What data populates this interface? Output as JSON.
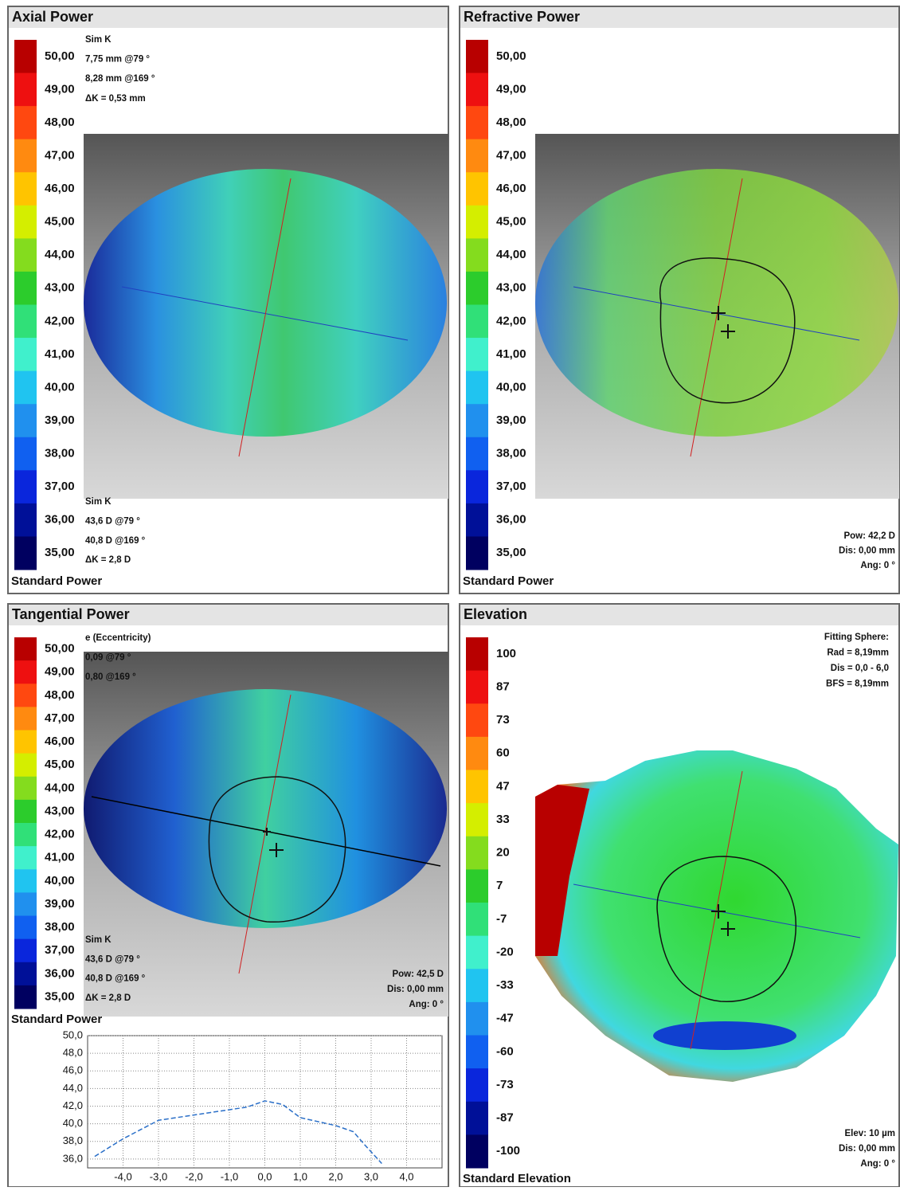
{
  "scale_colors": [
    "#b80000",
    "#ee1010",
    "#ff4810",
    "#ff8a10",
    "#ffc400",
    "#d4ee00",
    "#84dc1e",
    "#2ccc2c",
    "#30e078",
    "#40f0cc",
    "#20c4f0",
    "#2090ee",
    "#1060f0",
    "#0a26dc",
    "#001098",
    "#000060"
  ],
  "panels": [
    {
      "title": "Axial Power",
      "scale_labels": [
        "50,00",
        "49,00",
        "48,00",
        "47,00",
        "46,00",
        "45,00",
        "44,00",
        "43,00",
        "42,00",
        "41,00",
        "40,00",
        "39,00",
        "38,00",
        "37,00",
        "36,00",
        "35,00"
      ],
      "text_blocks": [
        [
          "Sim K",
          "7,75 mm @79 °",
          "8,28 mm @169 °",
          "ΔK = 0,53 mm"
        ],
        [
          "Sim K",
          "43,6 D @79 °",
          "40,8 D @169 °",
          "ΔK = 2,8 D"
        ]
      ],
      "footer": "Standard Power"
    },
    {
      "title": "Refractive Power",
      "scale_labels": [
        "50,00",
        "49,00",
        "48,00",
        "47,00",
        "46,00",
        "45,00",
        "44,00",
        "43,00",
        "42,00",
        "41,00",
        "40,00",
        "39,00",
        "38,00",
        "37,00",
        "36,00",
        "35,00"
      ],
      "text_blocks": [
        [
          "Pow: 42,2 D",
          "Dis: 0,00 mm",
          "Ang: 0 °"
        ]
      ],
      "footer": "Standard Power"
    },
    {
      "title": "Tangential Power",
      "scale_labels": [
        "50,00",
        "49,00",
        "48,00",
        "47,00",
        "46,00",
        "45,00",
        "44,00",
        "43,00",
        "42,00",
        "41,00",
        "40,00",
        "39,00",
        "38,00",
        "37,00",
        "36,00",
        "35,00"
      ],
      "text_blocks": [
        [
          "e (Eccentricity)",
          "0,09 @79 °",
          "0,80 @169 °"
        ],
        [
          "Sim K",
          "43,6 D @79 °",
          "40,8 D @169 °",
          "ΔK = 2,8 D"
        ],
        [
          "Pow: 42,5 D",
          "Dis: 0,00 mm",
          "Ang: 0 °"
        ]
      ],
      "footer": "Standard Power"
    },
    {
      "title": "Elevation",
      "scale_labels": [
        "100",
        "87",
        "73",
        "60",
        "47",
        "33",
        "20",
        "7",
        "-7",
        "-20",
        "-33",
        "-47",
        "-60",
        "-73",
        "-87",
        "-100"
      ],
      "text_blocks": [
        [
          "Fitting Sphere:",
          "Rad = 8,19mm",
          "Dis = 0,0 - 6,0",
          "BFS = 8,19mm"
        ],
        [
          "Elev: 10 µm",
          "Dis: 0,00 mm",
          "Ang: 0 °"
        ]
      ],
      "footer": "Standard Elevation"
    }
  ],
  "profile": {
    "type": "line",
    "xlim": [
      -5,
      5
    ],
    "ylim": [
      35,
      50
    ],
    "xticks": [
      {
        "value": -4,
        "label": "-4,0"
      },
      {
        "value": -3,
        "label": "-3,0"
      },
      {
        "value": -2,
        "label": "-2,0"
      },
      {
        "value": -1,
        "label": "-1,0"
      },
      {
        "value": 0,
        "label": "0,0"
      },
      {
        "value": 1,
        "label": "1,0"
      },
      {
        "value": 2,
        "label": "2,0"
      },
      {
        "value": 3,
        "label": "3,0"
      },
      {
        "value": 4,
        "label": "4,0"
      }
    ],
    "yticks": [
      {
        "value": 50,
        "label": "50,0"
      },
      {
        "value": 48,
        "label": "48,0"
      },
      {
        "value": 46,
        "label": "46,0"
      },
      {
        "value": 44,
        "label": "44,0"
      },
      {
        "value": 42,
        "label": "42,0"
      },
      {
        "value": 40,
        "label": "40,0"
      },
      {
        "value": 38,
        "label": "38,0"
      },
      {
        "value": 36,
        "label": "36,0"
      }
    ],
    "x": [
      -4.8,
      -4,
      -3,
      -2,
      -1,
      -0.5,
      0,
      0.5,
      1,
      2,
      2.5,
      2.8,
      3.3
    ],
    "values": [
      36.3,
      38.3,
      40.4,
      41,
      41.6,
      41.9,
      42.6,
      42.2,
      40.7,
      39.8,
      39.1,
      37.7,
      35.5
    ],
    "color": "#2a6fc8"
  }
}
